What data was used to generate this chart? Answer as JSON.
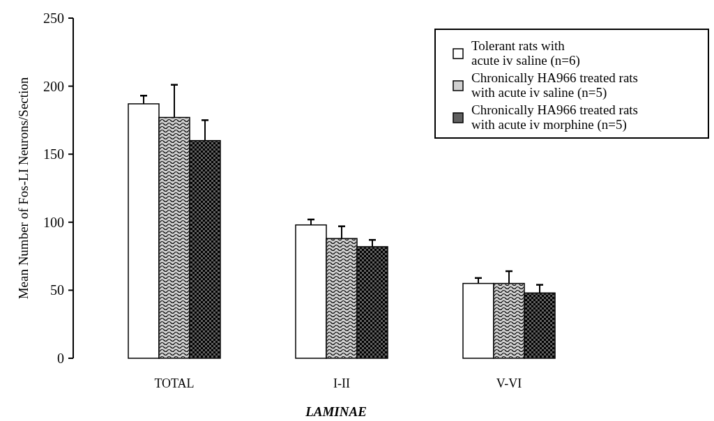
{
  "chart_data": {
    "type": "bar",
    "xlabel": "LAMINAE",
    "ylabel": "Mean Number of Fos-LI Neurons/Section",
    "categories": [
      "TOTAL",
      "I-II",
      "V-VI"
    ],
    "series": [
      {
        "name": "Tolerant rats with\nacute iv saline (n=6)",
        "color": "#ffffff",
        "values": [
          187,
          98,
          55
        ],
        "errors": [
          6,
          4,
          4
        ]
      },
      {
        "name": "Chronically HA966 treated rats\nwith acute iv saline (n=5)",
        "color": "#d0d0d0",
        "values": [
          177,
          88,
          55
        ],
        "errors": [
          24,
          9,
          9
        ]
      },
      {
        "name": "Chronically HA966 treated rats\nwith acute iv morphine (n=5)",
        "color": "#606060",
        "values": [
          160,
          82,
          48
        ],
        "errors": [
          15,
          5,
          6
        ]
      }
    ],
    "ylim": [
      0,
      250
    ],
    "yticks": [
      0,
      50,
      100,
      150,
      200,
      250
    ],
    "legend": "top right",
    "grid": false
  }
}
